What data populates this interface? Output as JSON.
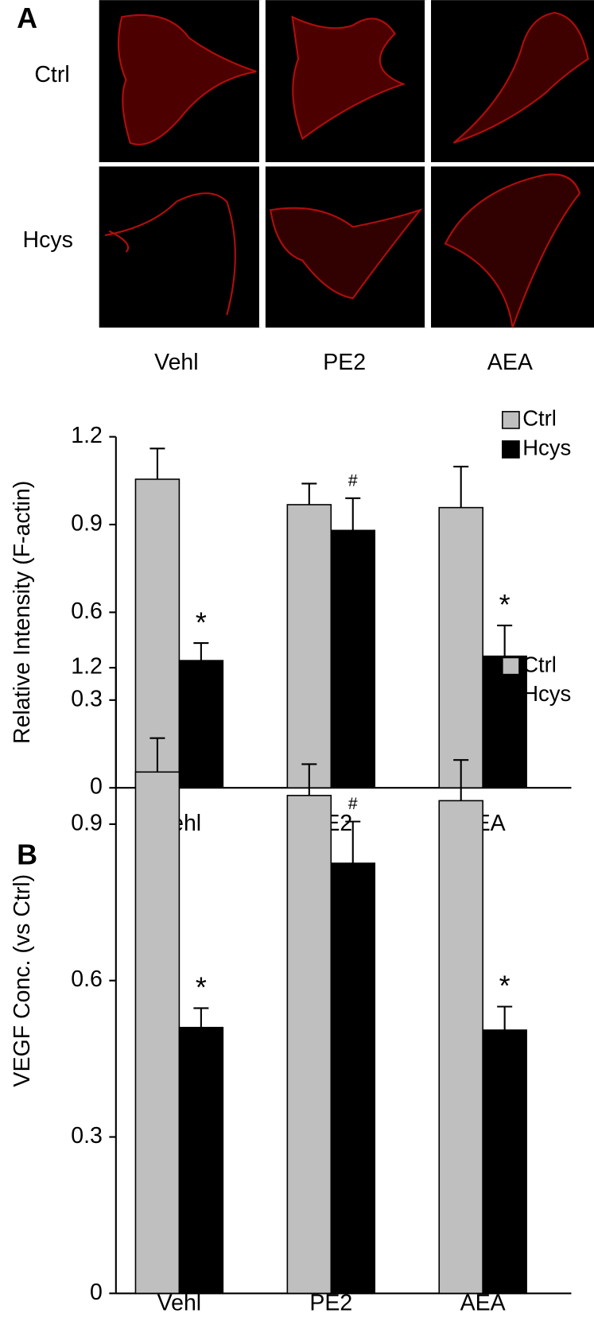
{
  "figure": {
    "panel_label": "A",
    "image_rows": [
      "Ctrl",
      "Hcys"
    ],
    "image_columns": [
      "Vehl",
      "PE2",
      "AEA"
    ]
  },
  "chart_data": [
    {
      "type": "bar",
      "y_label": "Relative Intensity (F-actin)",
      "categories": [
        "Vehl",
        "PE2",
        "AEA"
      ],
      "series": [
        {
          "name": "Ctrl",
          "color": "#bfbfbf",
          "values": [
            1.055,
            0.968,
            0.958
          ],
          "errors": [
            0.105,
            0.072,
            0.14
          ]
        },
        {
          "name": "Hcys",
          "color": "#000000",
          "values": [
            0.435,
            0.88,
            0.45
          ],
          "errors": [
            0.06,
            0.11,
            0.105
          ],
          "annotations": [
            "*",
            "#",
            "*"
          ]
        }
      ],
      "ylim": [
        0,
        1.2
      ],
      "yticks": [
        0,
        0.3,
        0.6,
        0.9,
        1.2
      ],
      "legend": "top-right"
    },
    {
      "type": "bar",
      "panel_label": "B",
      "y_label": "VEGF Conc. (vs Ctrl)",
      "categories": [
        "Vehl",
        "PE2",
        "AEA"
      ],
      "series": [
        {
          "name": "Ctrl",
          "color": "#bfbfbf",
          "values": [
            1.0,
            0.955,
            0.945
          ],
          "errors": [
            0.065,
            0.06,
            0.078
          ]
        },
        {
          "name": "Hcys",
          "color": "#000000",
          "values": [
            0.51,
            0.825,
            0.505
          ],
          "errors": [
            0.037,
            0.08,
            0.045
          ],
          "annotations": [
            "*",
            "#",
            "*"
          ]
        }
      ],
      "ylim": [
        0,
        1.2
      ],
      "yticks": [
        0,
        0.3,
        0.6,
        0.9,
        1.2
      ],
      "legend": "top-right"
    }
  ]
}
